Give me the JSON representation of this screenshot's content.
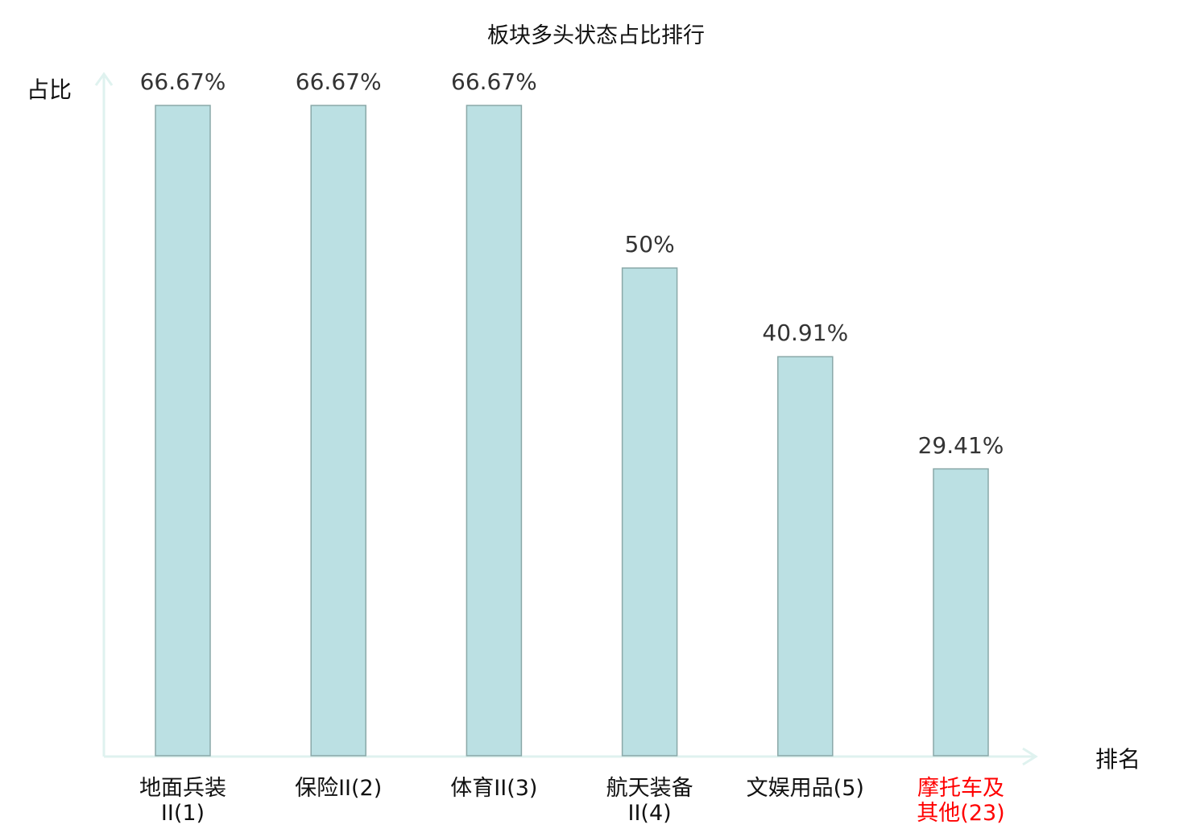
{
  "chart_data": {
    "type": "bar",
    "title": "板块多头状态占比排行",
    "ylabel": "占比",
    "xlabel": "排名",
    "categories": [
      "地面兵装\nII(1)",
      "保险II(2)",
      "体育II(3)",
      "航天装备\nII(4)",
      "文娱用品(5)",
      "摩托车及\n其他(23)"
    ],
    "values": [
      66.67,
      66.67,
      66.67,
      50,
      40.91,
      29.41
    ],
    "data_labels": [
      "66.67%",
      "66.67%",
      "66.67%",
      "50%",
      "40.91%",
      "29.41%"
    ],
    "highlight_index": 5,
    "ylim": [
      0,
      66.67
    ],
    "grid": false,
    "colors": {
      "bar_fill": "#bbe0e3",
      "bar_stroke": "#8aa8a8",
      "axis": "#dff2ef",
      "highlight_label": "#ff0000",
      "label": "#111111",
      "value_label": "#333333"
    }
  }
}
